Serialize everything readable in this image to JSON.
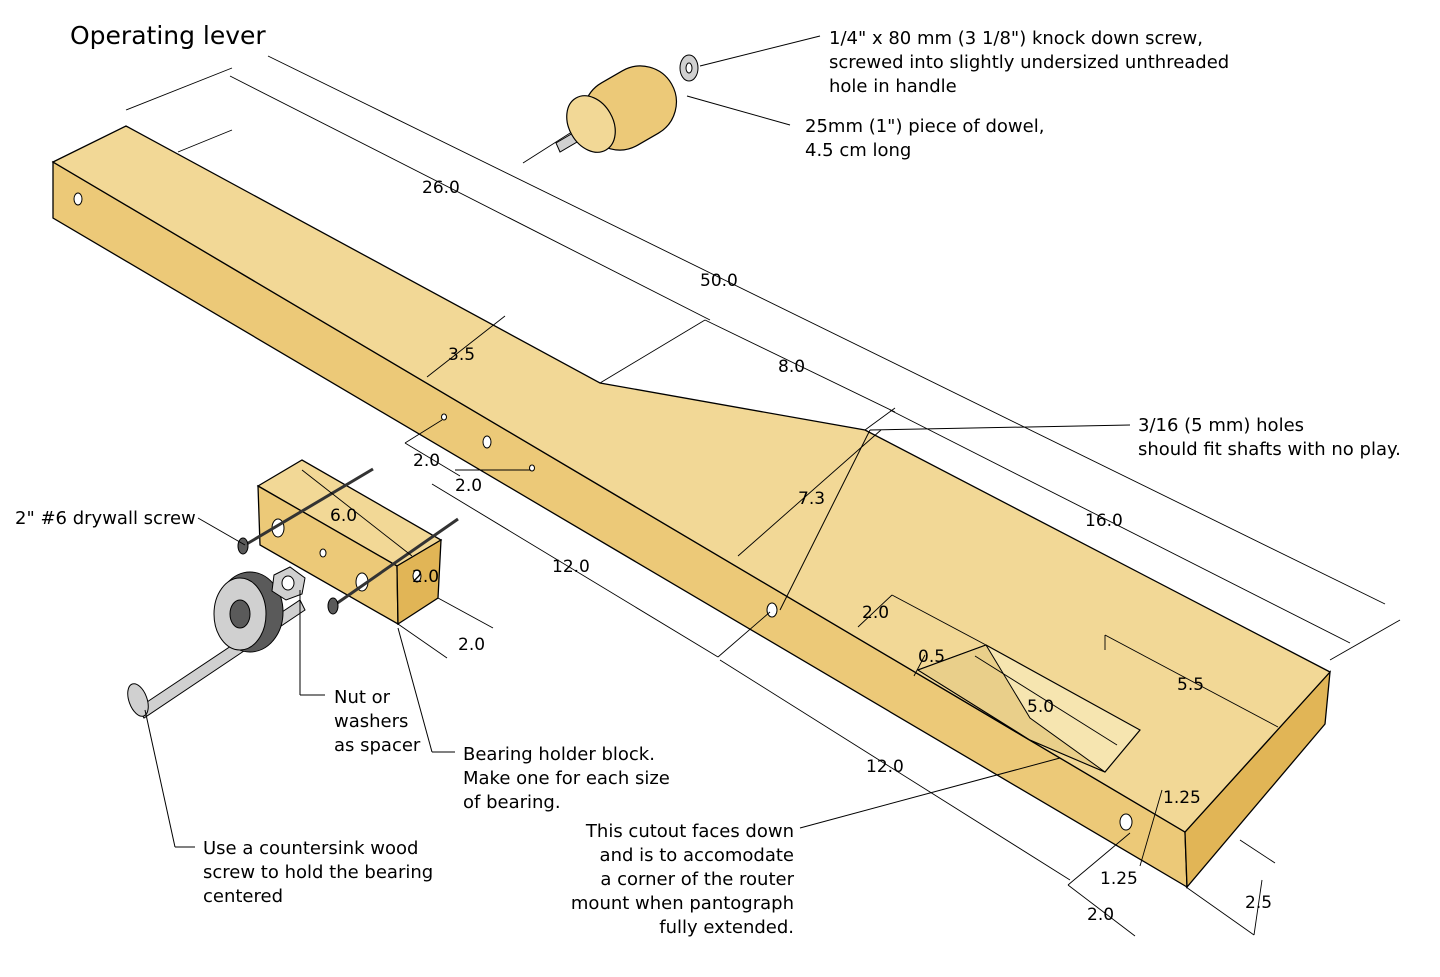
{
  "title": "Operating lever",
  "notes": {
    "screw_line1": "1/4\" x 80 mm (3 1/8\") knock down screw,",
    "screw_line2": "screwed into slightly undersized unthreaded",
    "screw_line3": "hole in handle",
    "dowel_line1": "25mm (1\") piece of dowel,",
    "dowel_line2": "4.5 cm long",
    "holes_line1": "3/16 (5 mm) holes",
    "holes_line2": "should fit shafts with no play.",
    "drywall": "2\" #6 drywall screw",
    "nut_line1": "Nut or",
    "nut_line2": "washers",
    "nut_line3": "as spacer",
    "block_line1": "Bearing holder block.",
    "block_line2": "Make one for each size",
    "block_line3": "of bearing.",
    "countersink_line1": "Use a countersink wood",
    "countersink_line2": "screw to hold the bearing",
    "countersink_line3": "centered",
    "cutout_line1": "This cutout faces down",
    "cutout_line2": "and is to accomodate",
    "cutout_line3": "a corner of the router",
    "cutout_line4": "mount when pantograph",
    "cutout_line5": "fully extended."
  },
  "dimensions": {
    "d_26": "26.0",
    "d_50": "50.0",
    "d_8": "8.0",
    "d_16": "16.0",
    "d_3_5": "3.5",
    "d_7_3": "7.3",
    "d_2a": "2.0",
    "d_2b": "2.0",
    "d_12a": "12.0",
    "d_12b": "12.0",
    "d_6": "6.0",
    "d_block_h": "2.0",
    "d_block_d": "2.0",
    "d_cut_2": "2.0",
    "d_0_5": "0.5",
    "d_5": "5.0",
    "d_5_5": "5.5",
    "d_1_25a": "1.25",
    "d_1_25b": "1.25",
    "d_end_2": "2.0",
    "d_2_5": "2.5"
  }
}
